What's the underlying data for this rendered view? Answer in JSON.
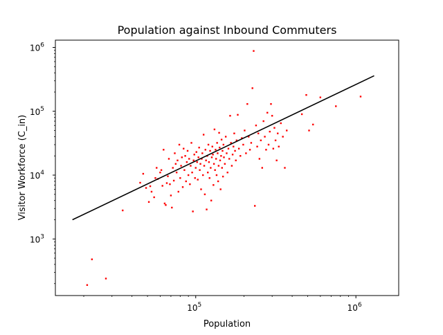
{
  "chart_data": {
    "type": "scatter",
    "title": "Population against Inbound Commuters",
    "xlabel": "Population",
    "ylabel": "Visitor Workforce (C_in)",
    "xscale": "log",
    "yscale": "log",
    "xlim": [
      13300,
      1850000
    ],
    "ylim": [
      130,
      1300000
    ],
    "grid": false,
    "x_ticks": [
      {
        "value": 100000,
        "base": "10",
        "exp": "5"
      },
      {
        "value": 1000000,
        "base": "10",
        "exp": "6"
      }
    ],
    "y_ticks": [
      {
        "value": 1000,
        "base": "10",
        "exp": "3"
      },
      {
        "value": 10000,
        "base": "10",
        "exp": "4"
      },
      {
        "value": 100000,
        "base": "10",
        "exp": "5"
      },
      {
        "value": 1000000,
        "base": "10",
        "exp": "6"
      }
    ],
    "point_color": "#ff0000",
    "line_color": "#000000",
    "fit_line": {
      "x": [
        17000,
        1300000
      ],
      "y": [
        2000,
        360000
      ]
    },
    "points": [
      [
        21000,
        190
      ],
      [
        22500,
        480
      ],
      [
        27500,
        240
      ],
      [
        35000,
        2800
      ],
      [
        45000,
        7600
      ],
      [
        47000,
        10500
      ],
      [
        49000,
        6300
      ],
      [
        51000,
        3800
      ],
      [
        52000,
        6700
      ],
      [
        53000,
        5500
      ],
      [
        55000,
        4500
      ],
      [
        56000,
        9000
      ],
      [
        57000,
        13000
      ],
      [
        58000,
        8700
      ],
      [
        60000,
        11000
      ],
      [
        61000,
        12000
      ],
      [
        62000,
        6800
      ],
      [
        63000,
        25000
      ],
      [
        64000,
        3600
      ],
      [
        65000,
        3400
      ],
      [
        66000,
        7500
      ],
      [
        67000,
        9600
      ],
      [
        68000,
        18000
      ],
      [
        69000,
        7200
      ],
      [
        70000,
        4800
      ],
      [
        71000,
        3100
      ],
      [
        72000,
        13000
      ],
      [
        73000,
        8200
      ],
      [
        74000,
        22000
      ],
      [
        75000,
        15000
      ],
      [
        76000,
        11000
      ],
      [
        77000,
        17000
      ],
      [
        78000,
        5500
      ],
      [
        79000,
        30000
      ],
      [
        80000,
        9000
      ],
      [
        81000,
        14000
      ],
      [
        82000,
        19000
      ],
      [
        83000,
        6500
      ],
      [
        84000,
        26000
      ],
      [
        85000,
        12000
      ],
      [
        86000,
        20000
      ],
      [
        87000,
        8000
      ],
      [
        88000,
        16000
      ],
      [
        89000,
        24000
      ],
      [
        90000,
        10000
      ],
      [
        91000,
        18000
      ],
      [
        92000,
        7200
      ],
      [
        93000,
        14000
      ],
      [
        94000,
        32000
      ],
      [
        95000,
        11000
      ],
      [
        96000,
        2700
      ],
      [
        97000,
        17000
      ],
      [
        98000,
        21000
      ],
      [
        99000,
        9000
      ],
      [
        100000,
        13000
      ],
      [
        101000,
        23000
      ],
      [
        102000,
        16000
      ],
      [
        103000,
        8500
      ],
      [
        104000,
        19000
      ],
      [
        105000,
        27000
      ],
      [
        106000,
        12000
      ],
      [
        107000,
        15000
      ],
      [
        108000,
        6000
      ],
      [
        109000,
        18000
      ],
      [
        110000,
        22000
      ],
      [
        111000,
        10000
      ],
      [
        112000,
        43000
      ],
      [
        113000,
        14000
      ],
      [
        114000,
        5000
      ],
      [
        115000,
        25000
      ],
      [
        116000,
        17000
      ],
      [
        117000,
        2900
      ],
      [
        118000,
        20000
      ],
      [
        119000,
        11000
      ],
      [
        120000,
        30000
      ],
      [
        121000,
        16000
      ],
      [
        122000,
        9000
      ],
      [
        123000,
        24000
      ],
      [
        124000,
        13000
      ],
      [
        125000,
        4000
      ],
      [
        126000,
        19000
      ],
      [
        127000,
        28000
      ],
      [
        128000,
        21000
      ],
      [
        129000,
        7000
      ],
      [
        130000,
        15000
      ],
      [
        131000,
        52000
      ],
      [
        132000,
        12000
      ],
      [
        133000,
        25000
      ],
      [
        134000,
        18000
      ],
      [
        135000,
        10000
      ],
      [
        136000,
        32000
      ],
      [
        137000,
        22000
      ],
      [
        138000,
        8000
      ],
      [
        139000,
        14000
      ],
      [
        140000,
        46000
      ],
      [
        141000,
        27000
      ],
      [
        142000,
        17000
      ],
      [
        143000,
        6000
      ],
      [
        144000,
        20000
      ],
      [
        145000,
        36000
      ],
      [
        146000,
        13000
      ],
      [
        147000,
        24000
      ],
      [
        148000,
        9500
      ],
      [
        149000,
        30000
      ],
      [
        150000,
        19000
      ],
      [
        152000,
        15000
      ],
      [
        154000,
        40000
      ],
      [
        156000,
        22000
      ],
      [
        158000,
        11000
      ],
      [
        160000,
        26000
      ],
      [
        162000,
        18000
      ],
      [
        164000,
        85000
      ],
      [
        166000,
        32000
      ],
      [
        168000,
        14000
      ],
      [
        170000,
        21000
      ],
      [
        172000,
        28000
      ],
      [
        174000,
        45000
      ],
      [
        176000,
        24000
      ],
      [
        178000,
        17000
      ],
      [
        180000,
        35000
      ],
      [
        183000,
        88000
      ],
      [
        186000,
        26000
      ],
      [
        190000,
        20000
      ],
      [
        194000,
        38000
      ],
      [
        198000,
        30000
      ],
      [
        202000,
        50000
      ],
      [
        206000,
        22000
      ],
      [
        210000,
        130000
      ],
      [
        214000,
        40000
      ],
      [
        218000,
        25000
      ],
      [
        222000,
        32000
      ],
      [
        226000,
        230000
      ],
      [
        230000,
        880000
      ],
      [
        234000,
        3300
      ],
      [
        238000,
        60000
      ],
      [
        242000,
        28000
      ],
      [
        246000,
        45000
      ],
      [
        250000,
        18000
      ],
      [
        255000,
        35000
      ],
      [
        260000,
        13000
      ],
      [
        265000,
        70000
      ],
      [
        270000,
        40000
      ],
      [
        275000,
        25000
      ],
      [
        280000,
        95000
      ],
      [
        285000,
        30000
      ],
      [
        290000,
        48000
      ],
      [
        295000,
        130000
      ],
      [
        300000,
        85000
      ],
      [
        305000,
        26000
      ],
      [
        310000,
        55000
      ],
      [
        315000,
        35000
      ],
      [
        320000,
        17000
      ],
      [
        325000,
        45000
      ],
      [
        330000,
        28000
      ],
      [
        340000,
        65000
      ],
      [
        350000,
        40000
      ],
      [
        360000,
        13000
      ],
      [
        370000,
        50000
      ],
      [
        460000,
        90000
      ],
      [
        490000,
        180000
      ],
      [
        510000,
        50000
      ],
      [
        540000,
        62000
      ],
      [
        600000,
        165000
      ],
      [
        750000,
        120000
      ],
      [
        1070000,
        170000
      ]
    ]
  }
}
